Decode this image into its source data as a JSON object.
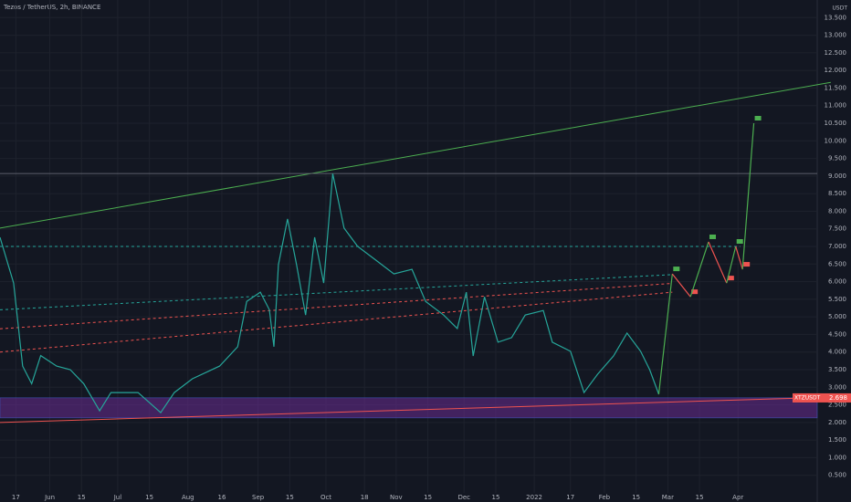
{
  "chart_data": {
    "type": "line",
    "title": "Tezos / TetherUS, 2h, BINANCE",
    "currency": "USDT",
    "x": [
      -7,
      -1,
      3,
      7,
      11,
      18,
      24,
      30,
      37,
      42,
      54,
      64,
      70,
      78,
      90,
      98,
      102,
      108,
      112,
      114,
      116,
      120,
      124,
      128,
      132,
      136,
      140,
      145,
      151,
      159,
      167,
      175,
      181,
      189,
      195,
      199,
      202,
      207,
      213,
      219,
      225,
      233,
      237,
      245,
      251,
      257,
      264,
      270,
      276,
      280,
      284
    ],
    "series": [
      {
        "color": "#26a69a",
        "values": [
          7.26,
          5.96,
          3.6,
          3.1,
          3.9,
          3.6,
          3.5,
          3.1,
          2.33,
          2.85,
          2.85,
          2.28,
          2.85,
          3.24,
          3.6,
          4.15,
          5.44,
          5.7,
          5.2,
          4.15,
          6.48,
          7.78,
          6.48,
          5.05,
          7.26,
          5.96,
          9.07,
          7.52,
          7.0,
          6.61,
          6.22,
          6.35,
          5.44,
          5.05,
          4.67,
          5.7,
          3.89,
          5.57,
          4.28,
          4.41,
          5.05,
          5.18,
          4.28,
          4.02,
          2.85,
          3.37,
          3.89,
          4.54,
          4.02,
          3.5,
          2.8
        ]
      }
    ],
    "xlim": [
      -7,
      354
    ],
    "ylim": [
      0,
      14
    ],
    "xticks": [
      {
        "value": 0,
        "label": "17"
      },
      {
        "value": 15,
        "label": "Jun"
      },
      {
        "value": 29,
        "label": "15"
      },
      {
        "value": 45,
        "label": "Jul"
      },
      {
        "value": 59,
        "label": "15"
      },
      {
        "value": 76,
        "label": "Aug"
      },
      {
        "value": 91,
        "label": "16"
      },
      {
        "value": 107,
        "label": "Sep"
      },
      {
        "value": 121,
        "label": "15"
      },
      {
        "value": 137,
        "label": "Oct"
      },
      {
        "value": 154,
        "label": "18"
      },
      {
        "value": 168,
        "label": "Nov"
      },
      {
        "value": 182,
        "label": "15"
      },
      {
        "value": 198,
        "label": "Dec"
      },
      {
        "value": 212,
        "label": "15"
      },
      {
        "value": 229,
        "label": "2022"
      },
      {
        "value": 245,
        "label": "17"
      },
      {
        "value": 260,
        "label": "Feb"
      },
      {
        "value": 274,
        "label": "15"
      },
      {
        "value": 288,
        "label": "Mar"
      },
      {
        "value": 302,
        "label": "15"
      },
      {
        "value": 319,
        "label": "Apr"
      }
    ],
    "yticks": [
      {
        "value": 0.5,
        "label": "0.500"
      },
      {
        "value": 1,
        "label": "1.000"
      },
      {
        "value": 1.5,
        "label": "1.500"
      },
      {
        "value": 2,
        "label": "2.000"
      },
      {
        "value": 2.5,
        "label": "2.500"
      },
      {
        "value": 3,
        "label": "3.000"
      },
      {
        "value": 3.5,
        "label": "3.500"
      },
      {
        "value": 4,
        "label": "4.000"
      },
      {
        "value": 4.5,
        "label": "4.500"
      },
      {
        "value": 5,
        "label": "5.000"
      },
      {
        "value": 5.5,
        "label": "5.500"
      },
      {
        "value": 6,
        "label": "6.000"
      },
      {
        "value": 6.5,
        "label": "6.500"
      },
      {
        "value": 7,
        "label": "7.000"
      },
      {
        "value": 7.5,
        "label": "7.500"
      },
      {
        "value": 8,
        "label": "8.000"
      },
      {
        "value": 8.5,
        "label": "8.500"
      },
      {
        "value": 9,
        "label": "9.000"
      },
      {
        "value": 9.5,
        "label": "9.500"
      },
      {
        "value": 10,
        "label": "10.000"
      },
      {
        "value": 10.5,
        "label": "10.500"
      },
      {
        "value": 11,
        "label": "11.000"
      },
      {
        "value": 11.5,
        "label": "11.500"
      },
      {
        "value": 12,
        "label": "12.000"
      },
      {
        "value": 12.5,
        "label": "12.500"
      },
      {
        "value": 13,
        "label": "13.000"
      },
      {
        "value": 13.5,
        "label": "13.500"
      }
    ],
    "grid": true,
    "last_price": {
      "value": 2.698,
      "symbol": "XTZUSDT",
      "color": "#ef5350"
    },
    "zones": [
      {
        "low": 2.13,
        "high": 2.7,
        "color": "#6a2c91"
      }
    ],
    "trendlines": [
      {
        "x": [
          -7,
          360
        ],
        "y": [
          7.52,
          11.66
        ],
        "color": "#4caf50",
        "dash": false
      },
      {
        "x": [
          -7,
          354
        ],
        "y": [
          9.07,
          9.07
        ],
        "color": "#5d606b",
        "dash": false
      },
      {
        "x": [
          -7,
          320
        ],
        "y": [
          7.0,
          7.0
        ],
        "color": "#26a69a",
        "dash": true
      },
      {
        "x": [
          -7,
          290
        ],
        "y": [
          5.2,
          6.2
        ],
        "color": "#26a69a",
        "dash": true
      },
      {
        "x": [
          -7,
          290
        ],
        "y": [
          4.66,
          5.95
        ],
        "color": "#ef5350",
        "dash": true
      },
      {
        "x": [
          -7,
          290
        ],
        "y": [
          4.0,
          5.7
        ],
        "color": "#ef5350",
        "dash": true
      },
      {
        "x": [
          -7,
          360
        ],
        "y": [
          2.0,
          2.72
        ],
        "color": "#ef5350",
        "dash": false
      }
    ],
    "projection": {
      "x": [
        284,
        290,
        298,
        306,
        314,
        318,
        321,
        326
      ],
      "values": [
        2.8,
        6.22,
        5.57,
        7.13,
        5.96,
        7.0,
        6.35,
        10.5
      ],
      "up_color": "#4caf50",
      "down_color": "#ef5350"
    }
  }
}
